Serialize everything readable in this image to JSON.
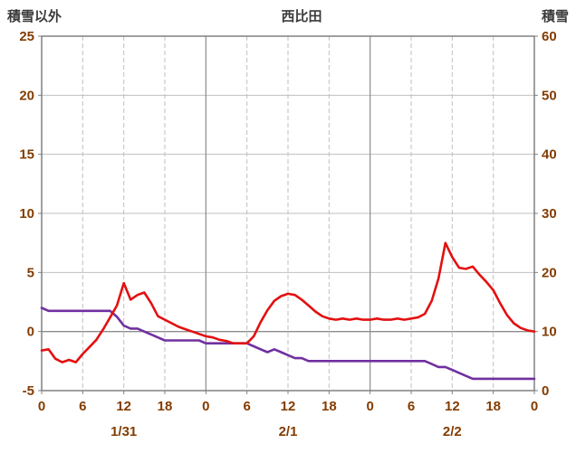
{
  "chart": {
    "title": "西比田",
    "left_axis_title": "積雪以外",
    "right_axis_title": "積雪"
  },
  "chart_data": {
    "type": "line",
    "title": "西比田",
    "x_unit": "hour",
    "x_range": [
      0,
      72
    ],
    "x_tick_step": 6,
    "x_tick_labels": [
      "0",
      "6",
      "12",
      "18",
      "0",
      "6",
      "12",
      "18",
      "0",
      "6",
      "12",
      "18",
      "0"
    ],
    "date_labels": [
      {
        "label": "1/31",
        "center_hour": 12
      },
      {
        "label": "2/1",
        "center_hour": 36
      },
      {
        "label": "2/2",
        "center_hour": 60
      }
    ],
    "left_axis": {
      "label": "積雪以外",
      "min": -5,
      "max": 25,
      "step": 5,
      "tick_labels": [
        "-5",
        "0",
        "5",
        "10",
        "15",
        "20",
        "25"
      ]
    },
    "right_axis": {
      "label": "積雪",
      "min": 0,
      "max": 60,
      "step": 10,
      "tick_labels": [
        "0",
        "10",
        "20",
        "30",
        "40",
        "50",
        "60"
      ]
    },
    "grid": {
      "horizontal": true,
      "vertical": true
    },
    "legend": "none",
    "colors": {
      "red_series": "#e31010",
      "purple_series": "#7030a0",
      "tick_text": "#833c00",
      "grid_minor": "#bfbfbf",
      "grid_major": "#8c8c8c",
      "border": "#808080"
    },
    "series": [
      {
        "name": "series-red",
        "axis": "left",
        "color": "#e31010",
        "values": [
          -1.6,
          -1.5,
          -2.3,
          -2.6,
          -2.4,
          -2.6,
          -1.9,
          -1.3,
          -0.7,
          0.2,
          1.2,
          2.2,
          4.1,
          2.7,
          3.1,
          3.3,
          2.4,
          1.3,
          1.0,
          0.7,
          0.4,
          0.2,
          0.0,
          -0.2,
          -0.4,
          -0.5,
          -0.7,
          -0.8,
          -1.0,
          -1.0,
          -1.0,
          -0.4,
          0.8,
          1.8,
          2.6,
          3.0,
          3.2,
          3.1,
          2.7,
          2.2,
          1.7,
          1.3,
          1.1,
          1.0,
          1.1,
          1.0,
          1.1,
          1.0,
          1.0,
          1.1,
          1.0,
          1.0,
          1.1,
          1.0,
          1.1,
          1.2,
          1.5,
          2.6,
          4.5,
          7.5,
          6.3,
          5.4,
          5.3,
          5.5,
          4.8,
          4.2,
          3.5,
          2.4,
          1.4,
          0.7,
          0.3,
          0.1,
          0.0
        ]
      },
      {
        "name": "series-purple",
        "axis": "right",
        "color": "#7030a0",
        "values": [
          14,
          13.5,
          13.5,
          13.5,
          13.5,
          13.5,
          13.5,
          13.5,
          13.5,
          13.5,
          13.5,
          12.5,
          11,
          10.5,
          10.5,
          10,
          9.5,
          9,
          8.5,
          8.5,
          8.5,
          8.5,
          8.5,
          8.5,
          8,
          8,
          8,
          8,
          8,
          8,
          8,
          7.5,
          7,
          6.5,
          7,
          6.5,
          6,
          5.5,
          5.5,
          5,
          5,
          5,
          5,
          5,
          5,
          5,
          5,
          5,
          5,
          5,
          5,
          5,
          5,
          5,
          5,
          5,
          5,
          4.5,
          4,
          4,
          3.5,
          3,
          2.5,
          2,
          2,
          2,
          2,
          2,
          2,
          2,
          2,
          2,
          2
        ]
      }
    ]
  }
}
